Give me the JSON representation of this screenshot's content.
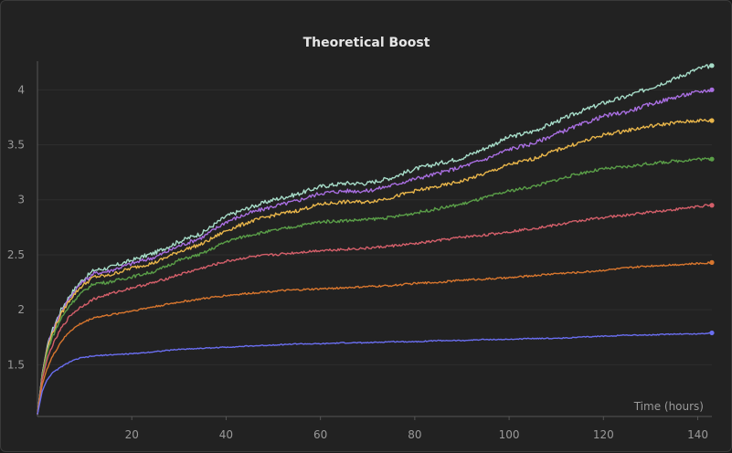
{
  "chart_data": {
    "type": "line",
    "title": "Theoretical Boost",
    "xlabel": "Time (hours)",
    "ylabel": "",
    "xlim": [
      0,
      143
    ],
    "ylim": [
      1.03,
      4.26
    ],
    "x_ticks": [
      20,
      40,
      60,
      80,
      100,
      120,
      140
    ],
    "y_ticks": [
      1.5,
      2,
      2.5,
      3,
      3.5,
      4
    ],
    "y_tick_labels": [
      "1.5",
      "2",
      "2.5",
      "3",
      "3.5",
      "4"
    ],
    "grid": true,
    "legend": "none",
    "x": [
      0,
      1,
      2,
      3,
      5,
      7,
      9,
      12,
      15,
      20,
      25,
      30,
      35,
      40,
      45,
      50,
      55,
      60,
      65,
      70,
      75,
      80,
      85,
      90,
      95,
      100,
      105,
      110,
      115,
      120,
      125,
      130,
      135,
      140,
      143
    ],
    "series": [
      {
        "color": "#a6dcc8",
        "values": [
          1.05,
          1.42,
          1.65,
          1.8,
          2.0,
          2.14,
          2.25,
          2.36,
          2.38,
          2.45,
          2.52,
          2.62,
          2.7,
          2.85,
          2.93,
          3.0,
          3.05,
          3.12,
          3.15,
          3.15,
          3.2,
          3.28,
          3.33,
          3.38,
          3.47,
          3.57,
          3.62,
          3.71,
          3.8,
          3.88,
          3.94,
          4.02,
          4.1,
          4.19,
          4.22
        ]
      },
      {
        "color": "#a86ee0",
        "values": [
          1.05,
          1.42,
          1.64,
          1.79,
          1.98,
          2.12,
          2.23,
          2.33,
          2.35,
          2.42,
          2.48,
          2.58,
          2.66,
          2.8,
          2.88,
          2.94,
          2.99,
          3.06,
          3.08,
          3.08,
          3.13,
          3.19,
          3.24,
          3.3,
          3.37,
          3.46,
          3.51,
          3.6,
          3.68,
          3.76,
          3.8,
          3.87,
          3.93,
          3.98,
          4.0
        ]
      },
      {
        "color": "#e8b54a",
        "values": [
          1.05,
          1.41,
          1.63,
          1.77,
          1.96,
          2.1,
          2.2,
          2.3,
          2.31,
          2.38,
          2.43,
          2.53,
          2.6,
          2.72,
          2.8,
          2.86,
          2.9,
          2.96,
          2.98,
          2.98,
          3.02,
          3.08,
          3.12,
          3.17,
          3.24,
          3.32,
          3.37,
          3.45,
          3.52,
          3.59,
          3.63,
          3.67,
          3.7,
          3.72,
          3.72
        ]
      },
      {
        "color": "#5a9e48",
        "values": [
          1.05,
          1.4,
          1.6,
          1.74,
          1.92,
          2.05,
          2.14,
          2.24,
          2.25,
          2.3,
          2.35,
          2.45,
          2.51,
          2.62,
          2.68,
          2.72,
          2.76,
          2.8,
          2.81,
          2.82,
          2.84,
          2.88,
          2.92,
          2.96,
          3.02,
          3.08,
          3.12,
          3.18,
          3.24,
          3.28,
          3.3,
          3.33,
          3.35,
          3.37,
          3.37
        ]
      },
      {
        "color": "#d45f6a",
        "values": [
          1.05,
          1.37,
          1.54,
          1.66,
          1.83,
          1.95,
          2.02,
          2.1,
          2.14,
          2.2,
          2.25,
          2.32,
          2.38,
          2.44,
          2.48,
          2.5,
          2.52,
          2.54,
          2.55,
          2.56,
          2.58,
          2.6,
          2.63,
          2.66,
          2.68,
          2.71,
          2.74,
          2.77,
          2.81,
          2.84,
          2.86,
          2.89,
          2.91,
          2.94,
          2.95
        ]
      },
      {
        "color": "#d8762e",
        "values": [
          1.05,
          1.32,
          1.46,
          1.56,
          1.71,
          1.81,
          1.87,
          1.93,
          1.95,
          1.99,
          2.03,
          2.07,
          2.1,
          2.13,
          2.15,
          2.17,
          2.18,
          2.19,
          2.2,
          2.21,
          2.22,
          2.24,
          2.25,
          2.27,
          2.28,
          2.29,
          2.31,
          2.33,
          2.34,
          2.36,
          2.38,
          2.4,
          2.41,
          2.42,
          2.43
        ]
      },
      {
        "color": "#6a6ef0",
        "values": [
          1.05,
          1.26,
          1.36,
          1.42,
          1.48,
          1.53,
          1.56,
          1.58,
          1.59,
          1.6,
          1.62,
          1.64,
          1.65,
          1.66,
          1.67,
          1.68,
          1.69,
          1.69,
          1.7,
          1.7,
          1.71,
          1.71,
          1.72,
          1.72,
          1.73,
          1.73,
          1.74,
          1.74,
          1.75,
          1.76,
          1.77,
          1.77,
          1.78,
          1.78,
          1.79
        ]
      }
    ]
  }
}
